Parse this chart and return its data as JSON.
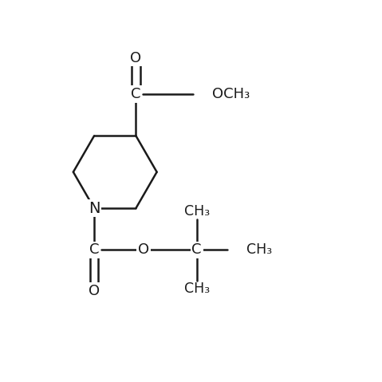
{
  "bg_color": "#ffffff",
  "line_color": "#1a1a1a",
  "line_width": 1.8,
  "font_size": 13,
  "font_family": "Arial",
  "figsize": [
    4.79,
    4.79
  ],
  "dpi": 100,
  "xlim": [
    0,
    10
  ],
  "ylim": [
    0,
    10
  ]
}
